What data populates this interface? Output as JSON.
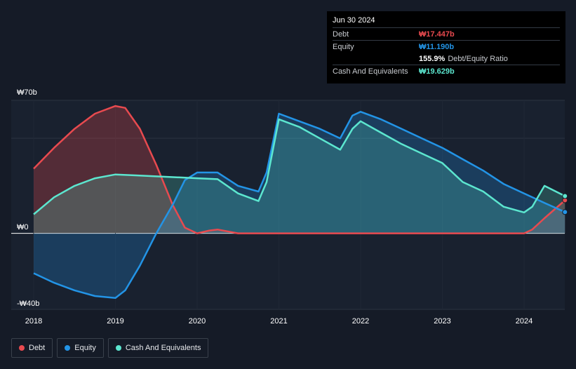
{
  "tooltip": {
    "date": "Jun 30 2024",
    "rows": [
      {
        "label": "Debt",
        "value": "₩17.447b",
        "color": "#e84a4f"
      },
      {
        "label": "Equity",
        "value": "₩11.190b",
        "color": "#2394e6"
      },
      {
        "label": "",
        "value": "155.9%",
        "color": "#ffffff",
        "suffix": "Debt/Equity Ratio"
      },
      {
        "label": "Cash And Equivalents",
        "value": "₩19.629b",
        "color": "#5ce6cf"
      }
    ]
  },
  "legend": [
    {
      "label": "Debt",
      "color": "#e84a4f"
    },
    {
      "label": "Equity",
      "color": "#2394e6"
    },
    {
      "label": "Cash And Equivalents",
      "color": "#5ce6cf"
    }
  ],
  "chart_data": {
    "type": "area",
    "y_tick_labels": [
      "₩70b",
      "₩0",
      "-₩40b"
    ],
    "ylim": [
      -40,
      70
    ],
    "xlim": [
      2018,
      2024.5
    ],
    "x_ticks": [
      2018,
      2019,
      2020,
      2021,
      2022,
      2023,
      2024
    ],
    "x_tick_labels": [
      "2018",
      "2019",
      "2020",
      "2021",
      "2022",
      "2023",
      "2024"
    ],
    "grid": true,
    "legend_position": "bottom-left",
    "series": [
      {
        "name": "Debt",
        "color": "#e84a4f",
        "points": [
          [
            2018,
            34
          ],
          [
            2018.25,
            45
          ],
          [
            2018.5,
            55
          ],
          [
            2018.75,
            63
          ],
          [
            2019,
            67
          ],
          [
            2019.12,
            66
          ],
          [
            2019.3,
            55
          ],
          [
            2019.5,
            36
          ],
          [
            2019.7,
            15
          ],
          [
            2019.85,
            3
          ],
          [
            2020,
            0
          ],
          [
            2020.15,
            1.5
          ],
          [
            2020.25,
            2
          ],
          [
            2020.5,
            0
          ],
          [
            2021,
            0
          ],
          [
            2022,
            0
          ],
          [
            2023,
            0
          ],
          [
            2024,
            0
          ],
          [
            2024.1,
            2
          ],
          [
            2024.25,
            8
          ],
          [
            2024.5,
            17.4
          ]
        ]
      },
      {
        "name": "Equity",
        "color": "#2394e6",
        "points": [
          [
            2018,
            -21
          ],
          [
            2018.25,
            -26
          ],
          [
            2018.5,
            -30
          ],
          [
            2018.75,
            -33
          ],
          [
            2019,
            -34
          ],
          [
            2019.12,
            -30
          ],
          [
            2019.3,
            -17
          ],
          [
            2019.5,
            0
          ],
          [
            2019.7,
            15
          ],
          [
            2019.85,
            28
          ],
          [
            2020,
            32
          ],
          [
            2020.25,
            32
          ],
          [
            2020.5,
            25
          ],
          [
            2020.75,
            22
          ],
          [
            2020.85,
            32
          ],
          [
            2021,
            63
          ],
          [
            2021.25,
            59
          ],
          [
            2021.5,
            55
          ],
          [
            2021.75,
            50
          ],
          [
            2021.9,
            62
          ],
          [
            2022,
            64
          ],
          [
            2022.25,
            60
          ],
          [
            2022.5,
            55
          ],
          [
            2022.75,
            50
          ],
          [
            2023,
            45
          ],
          [
            2023.25,
            39
          ],
          [
            2023.5,
            33
          ],
          [
            2023.75,
            26
          ],
          [
            2024,
            21
          ],
          [
            2024.25,
            16
          ],
          [
            2024.5,
            11.2
          ]
        ]
      },
      {
        "name": "Cash And Equivalents",
        "color": "#5ce6cf",
        "points": [
          [
            2018,
            10
          ],
          [
            2018.25,
            19
          ],
          [
            2018.5,
            25
          ],
          [
            2018.75,
            29
          ],
          [
            2019,
            31
          ],
          [
            2019.25,
            30.5
          ],
          [
            2019.5,
            30
          ],
          [
            2019.75,
            29.5
          ],
          [
            2020,
            29
          ],
          [
            2020.25,
            28.5
          ],
          [
            2020.5,
            21
          ],
          [
            2020.75,
            17
          ],
          [
            2020.85,
            27
          ],
          [
            2021,
            60
          ],
          [
            2021.25,
            56
          ],
          [
            2021.5,
            50
          ],
          [
            2021.75,
            44
          ],
          [
            2021.9,
            55
          ],
          [
            2022,
            59
          ],
          [
            2022.25,
            53
          ],
          [
            2022.5,
            47
          ],
          [
            2022.75,
            42
          ],
          [
            2023,
            37
          ],
          [
            2023.25,
            27
          ],
          [
            2023.5,
            22
          ],
          [
            2023.75,
            14
          ],
          [
            2024,
            11
          ],
          [
            2024.1,
            14
          ],
          [
            2024.25,
            25
          ],
          [
            2024.5,
            19.6
          ]
        ]
      }
    ]
  }
}
